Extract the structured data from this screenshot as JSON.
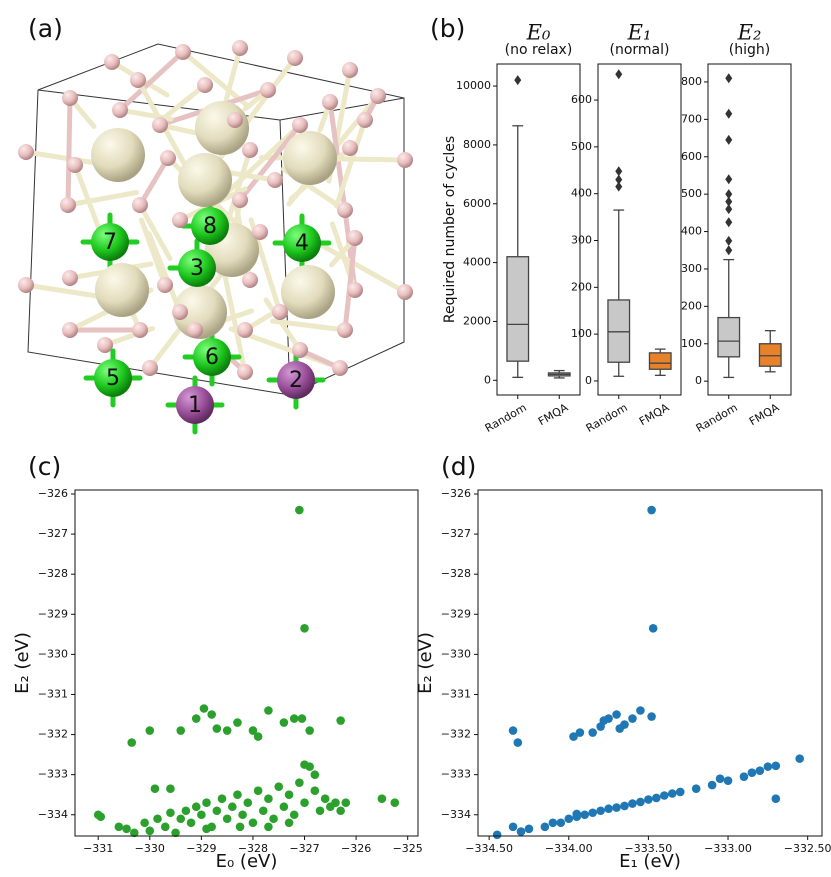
{
  "panel_labels": [
    "(a)",
    "(b)",
    "(c)",
    "(d)"
  ],
  "structure": {
    "site_labels": [
      "1",
      "2",
      "3",
      "4",
      "5",
      "6",
      "7",
      "8"
    ]
  },
  "chart_data": [
    {
      "type": "box",
      "title": "E₀",
      "subtitle": "(no relax)",
      "ylabel": "Required number of cycles",
      "categories": [
        "Random",
        "FMQA"
      ],
      "ylim": [
        -500,
        10750
      ],
      "yticks": [
        0,
        2000,
        4000,
        6000,
        8000,
        10000
      ],
      "boxes": [
        {
          "whislo": 100,
          "q1": 650,
          "med": 1900,
          "q3": 4200,
          "whishi": 8650,
          "fliers": [
            10200
          ],
          "color": "#c8c8c8"
        },
        {
          "whislo": 80,
          "q1": 150,
          "med": 200,
          "q3": 250,
          "whishi": 330,
          "fliers": [],
          "color": "#c8c8c8"
        }
      ]
    },
    {
      "type": "box",
      "title": "E₁",
      "subtitle": "(normal)",
      "categories": [
        "Random",
        "FMQA"
      ],
      "ylim": [
        -30,
        677
      ],
      "yticks": [
        0,
        100,
        200,
        300,
        400,
        500,
        600
      ],
      "boxes": [
        {
          "whislo": 10,
          "q1": 40,
          "med": 105,
          "q3": 173,
          "whishi": 365,
          "fliers": [
            655,
            448,
            430,
            415
          ],
          "color": "#c8c8c8"
        },
        {
          "whislo": 12,
          "q1": 25,
          "med": 38,
          "q3": 60,
          "whishi": 68,
          "fliers": [],
          "color": "#e8822a"
        }
      ]
    },
    {
      "type": "box",
      "title": "E₂",
      "subtitle": "(high)",
      "categories": [
        "Random",
        "FMQA"
      ],
      "ylim": [
        -37,
        848
      ],
      "yticks": [
        0,
        100,
        200,
        300,
        400,
        500,
        600,
        700,
        800
      ],
      "boxes": [
        {
          "whislo": 10,
          "q1": 65,
          "med": 107,
          "q3": 170,
          "whishi": 325,
          "fliers": [
            810,
            715,
            645,
            540,
            500,
            480,
            460,
            425,
            375,
            350
          ],
          "color": "#c8c8c8"
        },
        {
          "whislo": 25,
          "q1": 40,
          "med": 68,
          "q3": 100,
          "whishi": 135,
          "fliers": [],
          "color": "#e8822a"
        }
      ]
    },
    {
      "type": "scatter",
      "xlabel": "E₀ (eV)",
      "ylabel": "E₂ (eV)",
      "color": "#2ca02c",
      "xlim": [
        -331.45,
        -324.8
      ],
      "ylim": [
        -334.53,
        -325.9
      ],
      "xticks": [
        {
          "value": -331,
          "label": "−331"
        },
        {
          "value": -330,
          "label": "−330"
        },
        {
          "value": -329,
          "label": "−329"
        },
        {
          "value": -328,
          "label": "−328"
        },
        {
          "value": -327,
          "label": "−327"
        },
        {
          "value": -326,
          "label": "−326"
        },
        {
          "value": -325,
          "label": "−325"
        }
      ],
      "yticks": [
        {
          "value": -326,
          "label": "−326"
        },
        {
          "value": -327,
          "label": "−327"
        },
        {
          "value": -328,
          "label": "−328"
        },
        {
          "value": -329,
          "label": "−329"
        },
        {
          "value": -330,
          "label": "−330"
        },
        {
          "value": -331,
          "label": "−331"
        },
        {
          "value": -332,
          "label": "−332"
        },
        {
          "value": -333,
          "label": "−333"
        },
        {
          "value": -334,
          "label": "−334"
        }
      ],
      "x": [
        -331,
        -330.95,
        -330.6,
        -330.45,
        -330.3,
        -330.1,
        -330.0,
        -329.85,
        -329.7,
        -329.6,
        -329.5,
        -329.4,
        -329.3,
        -329.2,
        -329.1,
        -329.0,
        -328.9,
        -328.8,
        -328.7,
        -328.6,
        -328.5,
        -328.4,
        -328.3,
        -328.2,
        -328.1,
        -328.0,
        -327.9,
        -327.8,
        -327.7,
        -327.6,
        -327.5,
        -327.4,
        -327.3,
        -327.2,
        -327.1,
        -327.0,
        -326.9,
        -326.8,
        -326.7,
        -326.6,
        -326.5,
        -326.4,
        -326.3,
        -326.2,
        -327.0,
        -326.8,
        -327.3,
        -328.9,
        -329.9,
        -329.6,
        -325.5,
        -325.25,
        -327.7,
        -328.25,
        -330.35,
        -330.0,
        -329.4,
        -329.1,
        -328.95,
        -328.8,
        -328.7,
        -328.3,
        -328.0,
        -327.9,
        -327.7,
        -327.4,
        -327.2,
        -327.05,
        -326.9,
        -326.3,
        -328.5,
        -327.1,
        -327.0
      ],
      "y": [
        -334.0,
        -334.05,
        -334.3,
        -334.35,
        -334.45,
        -334.2,
        -334.4,
        -334.1,
        -334.3,
        -333.95,
        -334.45,
        -334.1,
        -333.9,
        -334.2,
        -333.8,
        -334.0,
        -333.7,
        -334.3,
        -333.9,
        -333.6,
        -334.1,
        -333.8,
        -333.5,
        -334.0,
        -333.7,
        -334.2,
        -333.4,
        -333.9,
        -333.6,
        -334.1,
        -333.3,
        -333.8,
        -333.5,
        -334.0,
        -333.2,
        -333.7,
        -332.8,
        -333.4,
        -333.9,
        -333.6,
        -333.8,
        -333.7,
        -333.9,
        -333.7,
        -332.75,
        -333.0,
        -334.2,
        -334.35,
        -333.35,
        -333.35,
        -333.6,
        -333.7,
        -334.3,
        -334.3,
        -332.2,
        -331.9,
        -331.9,
        -331.6,
        -331.35,
        -331.5,
        -331.85,
        -331.7,
        -331.9,
        -332.05,
        -331.4,
        -331.7,
        -331.6,
        -331.6,
        -331.9,
        -331.65,
        -331.9,
        -326.4,
        -329.35
      ]
    },
    {
      "type": "scatter",
      "xlabel": "E₁ (eV)",
      "ylabel": "E₂ (eV)",
      "color": "#1f77b4",
      "xlim": [
        -334.57,
        -332.41
      ],
      "ylim": [
        -334.53,
        -325.9
      ],
      "xticks": [
        {
          "value": -334.5,
          "label": "−334.50"
        },
        {
          "value": -334.0,
          "label": "−334.00"
        },
        {
          "value": -333.5,
          "label": "−333.50"
        },
        {
          "value": -333.0,
          "label": "−333.00"
        },
        {
          "value": -332.5,
          "label": "−332.50"
        }
      ],
      "yticks": [
        {
          "value": -326,
          "label": "−326"
        },
        {
          "value": -327,
          "label": "−327"
        },
        {
          "value": -328,
          "label": "−328"
        },
        {
          "value": -329,
          "label": "−329"
        },
        {
          "value": -330,
          "label": "−330"
        },
        {
          "value": -331,
          "label": "−331"
        },
        {
          "value": -332,
          "label": "−332"
        },
        {
          "value": -333,
          "label": "−333"
        },
        {
          "value": -334,
          "label": "−334"
        }
      ],
      "x": [
        -334.45,
        -334.3,
        -334.25,
        -334.15,
        -334.05,
        -334.0,
        -333.95,
        -333.9,
        -333.85,
        -333.8,
        -333.75,
        -333.7,
        -333.65,
        -333.6,
        -333.55,
        -333.5,
        -333.45,
        -333.4,
        -333.35,
        -333.3,
        -333.2,
        -333.1,
        -333.0,
        -332.9,
        -332.85,
        -332.8,
        -332.75,
        -332.7,
        -332.55,
        -334.35,
        -334.1,
        -333.95,
        -333.05,
        -334.35,
        -334.32,
        -333.97,
        -333.93,
        -333.85,
        -333.8,
        -333.75,
        -333.7,
        -333.65,
        -333.6,
        -333.55,
        -333.68,
        -333.78,
        -333.48,
        -333.48,
        -333.47,
        -332.7
      ],
      "y": [
        -334.5,
        -334.42,
        -334.35,
        -334.3,
        -334.2,
        -334.1,
        -334.05,
        -334.0,
        -333.95,
        -333.9,
        -333.85,
        -333.82,
        -333.78,
        -333.72,
        -333.68,
        -333.62,
        -333.58,
        -333.52,
        -333.47,
        -333.43,
        -333.35,
        -333.26,
        -333.15,
        -333.05,
        -332.95,
        -332.9,
        -332.8,
        -332.78,
        -332.6,
        -334.3,
        -334.2,
        -333.98,
        -333.1,
        -331.9,
        -332.2,
        -332.05,
        -331.95,
        -331.95,
        -331.8,
        -331.6,
        -331.5,
        -331.75,
        -331.6,
        -331.4,
        -331.85,
        -331.65,
        -331.55,
        -326.4,
        -329.35,
        -333.6
      ]
    }
  ]
}
